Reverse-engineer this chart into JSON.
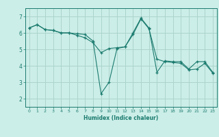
{
  "xlabel": "Humidex (Indice chaleur)",
  "background_color": "#cceee8",
  "line_color": "#1a7a6e",
  "grid_color": "#aad4cc",
  "xlim": [
    -0.5,
    23.5
  ],
  "ylim": [
    1.5,
    7.5
  ],
  "xticks": [
    0,
    1,
    2,
    3,
    4,
    5,
    6,
    7,
    8,
    9,
    10,
    11,
    12,
    13,
    14,
    15,
    16,
    17,
    18,
    19,
    20,
    21,
    22,
    23
  ],
  "yticks": [
    2,
    3,
    4,
    5,
    6,
    7
  ],
  "series1_x": [
    0,
    1,
    2,
    3,
    4,
    5,
    6,
    7,
    8,
    9,
    10,
    11,
    12,
    13,
    14,
    15,
    16,
    17,
    18,
    19,
    20,
    21,
    22,
    23
  ],
  "series1_y": [
    6.3,
    6.5,
    6.2,
    6.15,
    6.0,
    6.0,
    5.95,
    5.9,
    5.5,
    2.3,
    3.0,
    5.05,
    5.15,
    6.0,
    6.9,
    6.3,
    3.6,
    4.3,
    4.25,
    4.25,
    3.8,
    4.25,
    4.25,
    3.6
  ],
  "series2_x": [
    0,
    1,
    2,
    3,
    4,
    5,
    6,
    7,
    8,
    9,
    10,
    11,
    12,
    13,
    14,
    15,
    16,
    17,
    18,
    19,
    20,
    21,
    22,
    23
  ],
  "series2_y": [
    6.3,
    6.5,
    6.2,
    6.15,
    6.0,
    6.0,
    5.85,
    5.7,
    5.4,
    4.8,
    5.05,
    5.1,
    5.15,
    5.9,
    6.85,
    6.25,
    4.4,
    4.25,
    4.2,
    4.15,
    3.75,
    3.8,
    4.15,
    3.55
  ]
}
